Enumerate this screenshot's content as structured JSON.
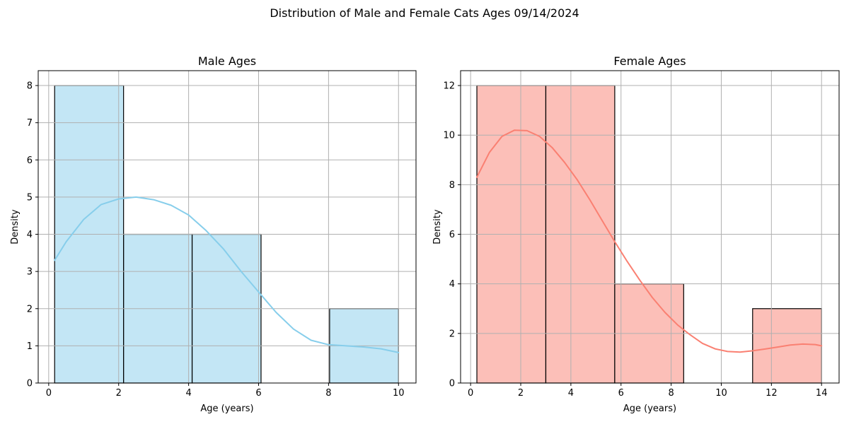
{
  "figure_title": "Distribution of Male and Female Cats Ages 09/14/2024",
  "chart_data": [
    {
      "type": "bar",
      "subtype": "histogram_with_kde",
      "title": "Male Ages",
      "xlabel": "Age (years)",
      "ylabel": "Density",
      "xlim": [
        -0.3,
        10.5
      ],
      "ylim": [
        0,
        8.4
      ],
      "xticks": [
        0,
        2,
        4,
        6,
        8,
        10
      ],
      "yticks": [
        0,
        1,
        2,
        3,
        4,
        5,
        6,
        7,
        8
      ],
      "grid": true,
      "bar_color": "#87ceeb",
      "line_color": "#87ceeb",
      "bins": [
        {
          "start": 0.17,
          "end": 2.14,
          "value": 8
        },
        {
          "start": 2.14,
          "end": 4.1,
          "value": 4
        },
        {
          "start": 4.1,
          "end": 6.07,
          "value": 4
        },
        {
          "start": 6.07,
          "end": 8.03,
          "value": 0
        },
        {
          "start": 8.03,
          "end": 10.0,
          "value": 2
        }
      ],
      "kde": {
        "x": [
          0.17,
          0.5,
          1.0,
          1.5,
          2.0,
          2.5,
          3.0,
          3.5,
          4.0,
          4.5,
          5.0,
          5.5,
          6.0,
          6.5,
          7.0,
          7.5,
          8.0,
          8.5,
          9.0,
          9.5,
          10.0
        ],
        "y": [
          3.3,
          3.8,
          4.4,
          4.8,
          4.95,
          5.0,
          4.93,
          4.78,
          4.52,
          4.1,
          3.6,
          3.0,
          2.45,
          1.9,
          1.45,
          1.15,
          1.03,
          1.0,
          0.97,
          0.92,
          0.82
        ]
      }
    },
    {
      "type": "bar",
      "subtype": "histogram_with_kde",
      "title": "Female Ages",
      "xlabel": "Age (years)",
      "ylabel": "Density",
      "xlim": [
        -0.4,
        14.7
      ],
      "ylim": [
        0,
        12.6
      ],
      "xticks": [
        0,
        2,
        4,
        6,
        8,
        10,
        12,
        14
      ],
      "yticks": [
        0,
        2,
        4,
        6,
        8,
        10,
        12
      ],
      "grid": true,
      "bar_color": "#fa8072",
      "line_color": "#fa8072",
      "bins": [
        {
          "start": 0.25,
          "end": 3.0,
          "value": 12
        },
        {
          "start": 3.0,
          "end": 5.75,
          "value": 12
        },
        {
          "start": 5.75,
          "end": 8.5,
          "value": 4
        },
        {
          "start": 8.5,
          "end": 11.25,
          "value": 0
        },
        {
          "start": 11.25,
          "end": 14.0,
          "value": 3
        }
      ],
      "kde": {
        "x": [
          0.25,
          0.75,
          1.25,
          1.75,
          2.25,
          2.75,
          3.25,
          3.75,
          4.25,
          4.75,
          5.25,
          5.75,
          6.25,
          6.75,
          7.25,
          7.75,
          8.25,
          8.75,
          9.25,
          9.75,
          10.25,
          10.75,
          11.25,
          11.75,
          12.25,
          12.75,
          13.25,
          13.75,
          14.0
        ],
        "y": [
          8.3,
          9.3,
          9.95,
          10.2,
          10.18,
          9.95,
          9.5,
          8.9,
          8.2,
          7.4,
          6.55,
          5.7,
          4.9,
          4.15,
          3.45,
          2.85,
          2.35,
          1.95,
          1.6,
          1.38,
          1.27,
          1.25,
          1.3,
          1.37,
          1.45,
          1.53,
          1.57,
          1.55,
          1.5
        ]
      }
    }
  ]
}
